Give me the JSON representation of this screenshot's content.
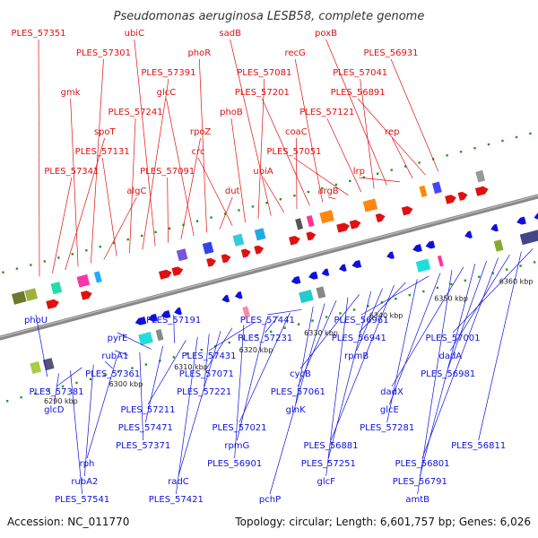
{
  "title": "Pseudomonas aeruginosa LESB58, complete genome",
  "accession": "Accession: NC_011770",
  "summary": "Topology: circular; Length: 6,601,757 bp; Genes: 6,026",
  "colors": {
    "forward": "#e01010",
    "reverse": "#1010dd",
    "backbone": "#888888",
    "dots": "#229922"
  },
  "ticks": [
    "6290 kbp",
    "6300 kbp",
    "6310 kbp",
    "6320 kbp",
    "6330 kbp",
    "6340 kbp",
    "6350 kbp",
    "6360 kbp"
  ],
  "forward_labels": [
    "PLES_57351",
    "PLES_57341",
    "spoT",
    "gmk",
    "PLES_57301",
    "algC",
    "PLES_57131",
    "PLES_57241",
    "PLES_57391",
    "ubiC",
    "PLES_57091",
    "rpoZ",
    "glcC",
    "phoR",
    "dut",
    "crc",
    "phoB",
    "PLES_57081",
    "sadB",
    "ubiA",
    "coaC",
    "PLES_57201",
    "recG",
    "argB",
    "PLES_57051",
    "PLES_57121",
    "PLES_57041",
    "poxB",
    "lrp",
    "rep",
    "PLES_56891",
    "PLES_56931"
  ],
  "reverse_labels": [
    "phoU",
    "glcD",
    "PLES_57541",
    "PLES_57381",
    "rubA2",
    "PLES_57361",
    "rph",
    "rubA1",
    "PLES_57371",
    "pyrE",
    "PLES_57471",
    "PLES_57191",
    "PLES_57211",
    "PLES_57421",
    "PLES_57221",
    "radC",
    "PLES_57071",
    "PLES_56901",
    "PLES_57431",
    "rpmG",
    "PLES_57231",
    "PLES_57021",
    "PLES_57441",
    "glnK",
    "pchP",
    "PLES_57061",
    "glcF",
    "cycB",
    "PLES_57251",
    "rpmB",
    "PLES_56881",
    "PLES_56941",
    "PLES_57281",
    "PLES_56961",
    "glcE",
    "amtB",
    "dadX",
    "PLES_56791",
    "PLES_56981",
    "PLES_56801",
    "dadA",
    "PLES_56811",
    "PLES_57001"
  ]
}
